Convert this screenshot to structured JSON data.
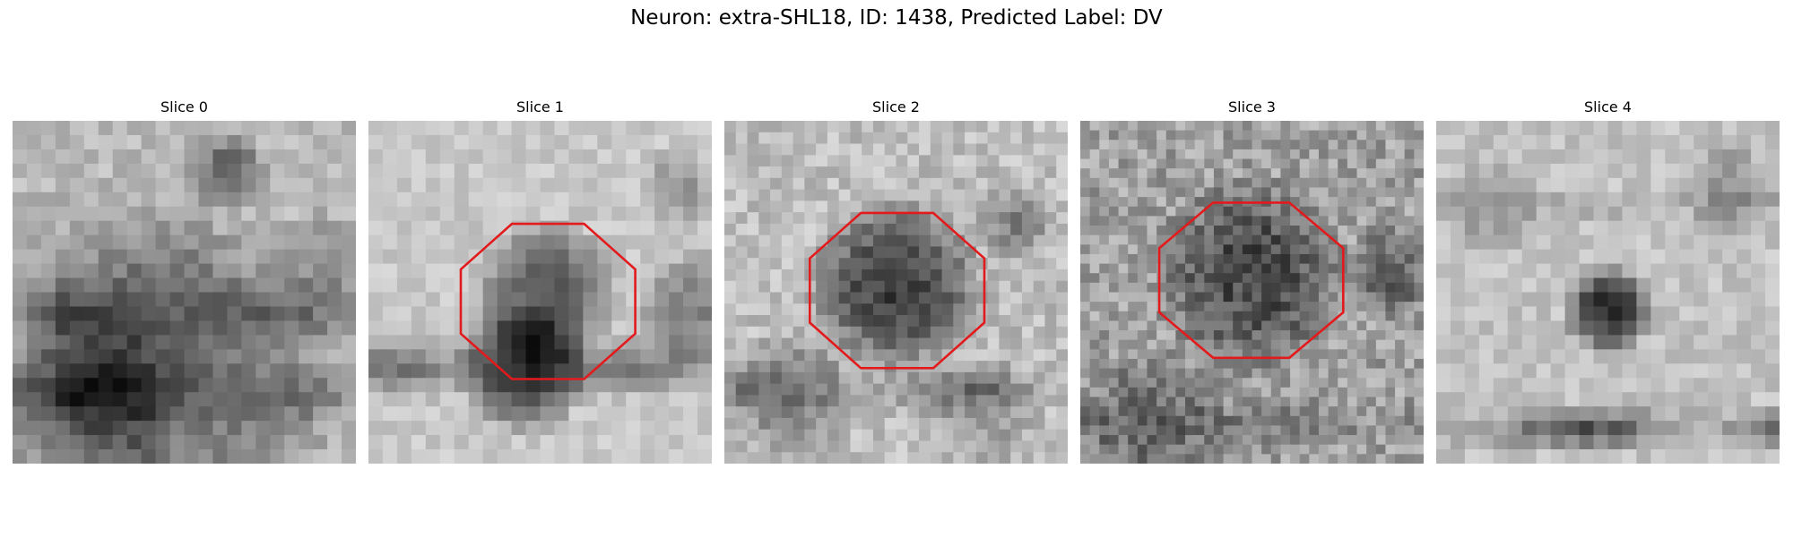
{
  "figure": {
    "title": "Neuron: extra-SHL18, ID: 1438, Predicted Label: DV"
  },
  "overlay_color": "#e31a1c",
  "slices": [
    {
      "title": "Slice 0",
      "has_contour": false
    },
    {
      "title": "Slice 1",
      "has_contour": true
    },
    {
      "title": "Slice 2",
      "has_contour": true
    },
    {
      "title": "Slice 3",
      "has_contour": true
    },
    {
      "title": "Slice 4",
      "has_contour": false
    }
  ]
}
